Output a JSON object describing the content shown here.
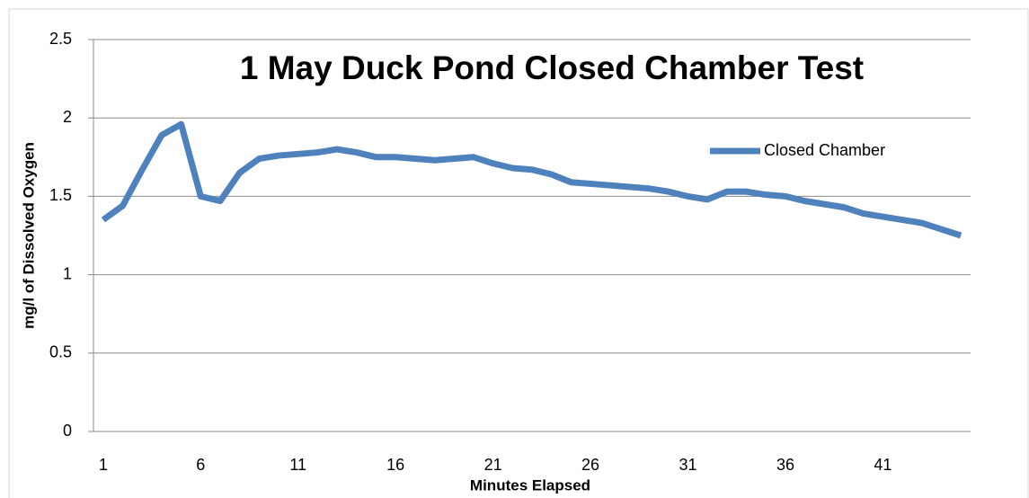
{
  "chart_data": {
    "type": "line",
    "title": "1 May Duck Pond Closed Chamber Test",
    "x_label": "Minutes Elapsed",
    "y_label": "mg/l of Dissolved  Oxygen",
    "categories": [
      "1",
      null,
      null,
      null,
      null,
      "6",
      null,
      null,
      null,
      null,
      "11",
      null,
      null,
      null,
      null,
      "16",
      null,
      null,
      null,
      null,
      "21",
      null,
      null,
      null,
      null,
      "26",
      null,
      null,
      null,
      null,
      "31",
      null,
      null,
      null,
      null,
      "36",
      null,
      null,
      null,
      null,
      "41",
      null,
      null,
      null,
      null
    ],
    "series": [
      {
        "name": "Closed Chamber",
        "color": "#4f81bd",
        "values": [
          1.35,
          1.44,
          1.67,
          1.89,
          1.96,
          1.5,
          1.47,
          1.65,
          1.74,
          1.76,
          1.77,
          1.78,
          1.8,
          1.78,
          1.75,
          1.75,
          1.74,
          1.73,
          1.74,
          1.75,
          1.71,
          1.68,
          1.67,
          1.64,
          1.59,
          1.58,
          1.57,
          1.56,
          1.55,
          1.53,
          1.5,
          1.48,
          1.53,
          1.53,
          1.51,
          1.5,
          1.47,
          1.45,
          1.43,
          1.39,
          1.37,
          1.35,
          1.33,
          1.29,
          1.25
        ]
      }
    ],
    "ylim": [
      0,
      2.5
    ],
    "yticks": [
      0,
      0.5,
      1,
      1.5,
      2,
      2.5
    ],
    "grid": true,
    "legend": "upper right"
  }
}
